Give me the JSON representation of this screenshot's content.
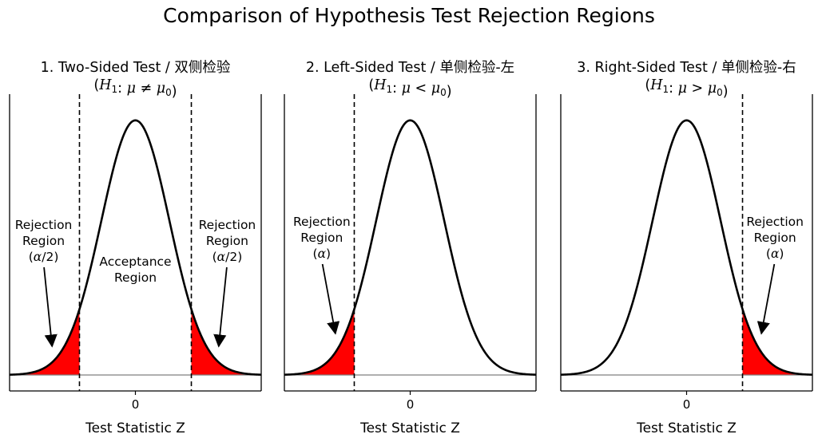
{
  "title": "Comparison of Hypothesis Test Rejection Regions",
  "colors": {
    "rejection_fill": "#ff0000",
    "curve": "#000000",
    "baseline": "#7f7f7f",
    "background": "#ffffff"
  },
  "chart_data": [
    {
      "type": "area",
      "title": "1. Two-Sided Test / 双侧检验",
      "subtitle": "(H₁: μ ≠ μ₀)",
      "distribution": "standard normal pdf",
      "xlim": [
        -3.7,
        3.7
      ],
      "ylim": [
        -0.025,
        0.44
      ],
      "critical_values": [
        -1.645,
        1.645
      ],
      "shaded": [
        [
          -3.7,
          -1.645
        ],
        [
          1.645,
          3.7
        ]
      ],
      "x_ticks": [
        0
      ],
      "x_tick_labels": [
        "0"
      ],
      "xlabel": "Test Statistic Z",
      "annotations": [
        {
          "lines": [
            "Rejection",
            "Region",
            "(α/2)"
          ],
          "text_at": [
            -2.7,
            0.21
          ],
          "arrow_to": [
            -2.45,
            0.045
          ]
        },
        {
          "lines": [
            "Acceptance",
            "Region"
          ],
          "text_at": [
            0,
            0.165
          ]
        },
        {
          "lines": [
            "Rejection",
            "Region",
            "(α/2)"
          ],
          "text_at": [
            2.7,
            0.21
          ],
          "arrow_to": [
            2.45,
            0.045
          ]
        }
      ]
    },
    {
      "type": "area",
      "title": "2. Left-Sided Test / 单侧检验-左",
      "subtitle": "(H₁: μ < μ₀)",
      "distribution": "standard normal pdf",
      "xlim": [
        -3.7,
        3.7
      ],
      "ylim": [
        -0.025,
        0.44
      ],
      "critical_values": [
        -1.645
      ],
      "shaded": [
        [
          -3.7,
          -1.645
        ]
      ],
      "x_ticks": [
        0
      ],
      "x_tick_labels": [
        "0"
      ],
      "xlabel": "Test Statistic Z",
      "annotations": [
        {
          "lines": [
            "Rejection",
            "Region",
            "(α)"
          ],
          "text_at": [
            -2.6,
            0.215
          ],
          "arrow_to": [
            -2.2,
            0.065
          ]
        }
      ]
    },
    {
      "type": "area",
      "title": "3. Right-Sided Test / 单侧检验-右",
      "subtitle": "(H₁: μ > μ₀)",
      "distribution": "standard normal pdf",
      "xlim": [
        -3.7,
        3.7
      ],
      "ylim": [
        -0.025,
        0.44
      ],
      "critical_values": [
        1.645
      ],
      "shaded": [
        [
          1.645,
          3.7
        ]
      ],
      "x_ticks": [
        0
      ],
      "x_tick_labels": [
        "0"
      ],
      "xlabel": "Test Statistic Z",
      "annotations": [
        {
          "lines": [
            "Rejection",
            "Region",
            "(α)"
          ],
          "text_at": [
            2.6,
            0.215
          ],
          "arrow_to": [
            2.2,
            0.065
          ]
        }
      ]
    }
  ]
}
